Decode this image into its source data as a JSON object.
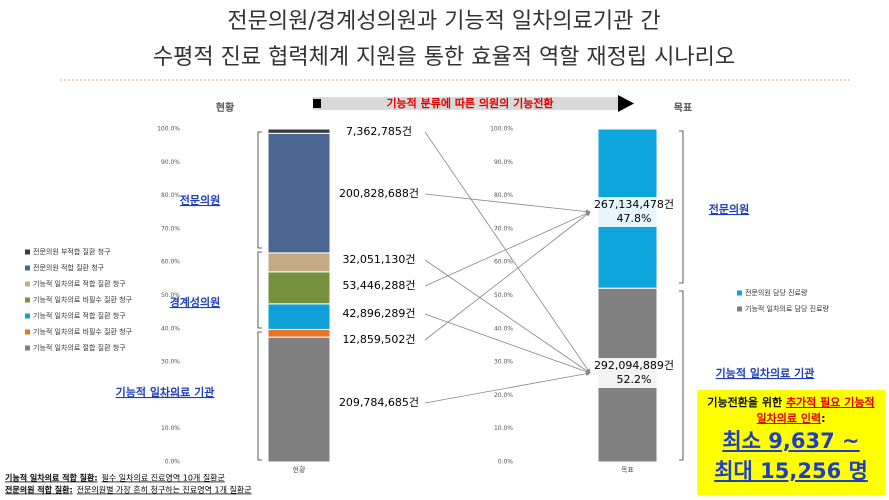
{
  "title_lines": [
    "전문의원/경계성의원과 기능적 일차의료기관 간",
    "수평적 진료 협력체계 지원을 통한 효율적 역할 재정립 시나리오"
  ],
  "flow_label": "기능적 분류에 따른 의원의 기능전환",
  "chart_data": [
    {
      "type": "bar",
      "stacked": true,
      "header": "현황",
      "categories": [
        "현황"
      ],
      "series": [
        {
          "name": "전문의원 부적합 질환 청구",
          "color": "#3a3a3a",
          "values": [
            1.3
          ]
        },
        {
          "name": "전문의원 적합 질환 청구",
          "color": "#4a6590",
          "values": [
            35.9
          ]
        },
        {
          "name": "기능적 일차의료 적합 질환 청구",
          "color": "#c4aa84",
          "values": [
            5.7
          ]
        },
        {
          "name": "기능적 일차의료 비필수 질환 청구",
          "color": "#76923c",
          "values": [
            9.6
          ]
        },
        {
          "name": "기능적 일차의료 적합 질환 청구",
          "color": "#0fa0d8",
          "values": [
            7.7
          ]
        },
        {
          "name": "기능적 일차의료 비필수 질환 청구",
          "color": "#e8732a",
          "values": [
            2.3
          ]
        },
        {
          "name": "기능적 일차의료 절합 질환 청구",
          "color": "#7f7f7f",
          "values": [
            37.5
          ]
        }
      ],
      "ylim": [
        0,
        100
      ],
      "yticks": [
        {
          "value": 0,
          "label": "0.0%"
        },
        {
          "value": 10,
          "label": "10.0%"
        },
        {
          "value": 20,
          "label": "20.0%"
        },
        {
          "value": 30,
          "label": "30.0%"
        },
        {
          "value": 40,
          "label": "40.0%"
        },
        {
          "value": 50,
          "label": "50.0%"
        },
        {
          "value": 60,
          "label": "60.0%"
        },
        {
          "value": 70,
          "label": "70.0%"
        },
        {
          "value": 80,
          "label": "80.0%"
        },
        {
          "value": 90,
          "label": "90.0%"
        },
        {
          "value": 100,
          "label": "100.0%"
        }
      ],
      "annotations": [
        "7,362,785건",
        "200,828,688건",
        "32,051,130건",
        "53,446,288건",
        "42,896,289건",
        "12,859,502건",
        "209,784,685건"
      ]
    },
    {
      "type": "bar",
      "stacked": true,
      "header": "목표",
      "categories": [
        "목표"
      ],
      "series": [
        {
          "name": "전문의원 담당 진료량",
          "color": "#0ea5dc",
          "values": [
            47.8
          ],
          "value_labels": [
            "47.8%"
          ]
        },
        {
          "name": "기능적 일차의료 담당 진료량",
          "color": "#808080",
          "values": [
            52.2
          ],
          "value_labels": [
            "52.2%"
          ]
        }
      ],
      "ylim": [
        0,
        100
      ],
      "yticks": [
        {
          "value": 0,
          "label": "0.0%"
        },
        {
          "value": 10,
          "label": "10.0%"
        },
        {
          "value": 20,
          "label": "20.0%"
        },
        {
          "value": 30,
          "label": "30.0%"
        },
        {
          "value": 40,
          "label": "40.0%"
        },
        {
          "value": 50,
          "label": "50.0%"
        },
        {
          "value": 60,
          "label": "60.0%"
        },
        {
          "value": 70,
          "label": "70.0%"
        },
        {
          "value": 80,
          "label": "80.0%"
        },
        {
          "value": 90,
          "label": "90.0%"
        },
        {
          "value": 100,
          "label": "100.0%"
        }
      ],
      "annotations": [
        "267,134,478건",
        "292,094,889건"
      ]
    }
  ],
  "left_groups": [
    "전문의원",
    "경계성의원",
    "기능적 일차의료 기관"
  ],
  "right_groups": [
    "전문의원",
    "기능적 일차의료 기관"
  ],
  "callout": {
    "prefix": "기능전환을 위한",
    "highlight": "추가적 필요 기능적 일차의료 인력",
    "suffix": ":",
    "min": "최소 9,637 ~",
    "max": "최대 15,256 명"
  },
  "footnotes": [
    {
      "label": "기능적 일차의료 적합 질환:",
      "text": "필수 일차의료 진료영역 10개 질환군"
    },
    {
      "label": "전문의원 적합 질환:",
      "text": "전문의원별 가장 흔히 청구하는 진료영역 1개 질환군"
    }
  ]
}
